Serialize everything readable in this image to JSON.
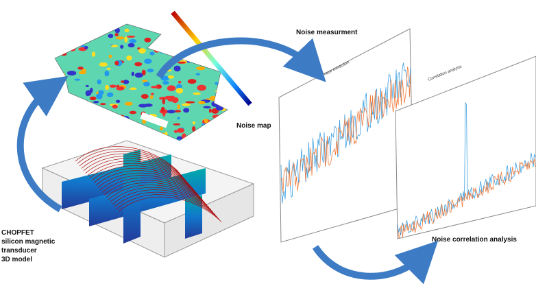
{
  "labels": {
    "noise_map": "Noise map",
    "noise_measurement": "Noise measurment",
    "model": [
      "CHOPFET",
      "silicon magnetic",
      "transducer",
      "3D model"
    ],
    "correlation": "Noise correlation analysis",
    "phase_panel": "Phase extraction",
    "correlation_panel": "Correlation analysis"
  }
}
